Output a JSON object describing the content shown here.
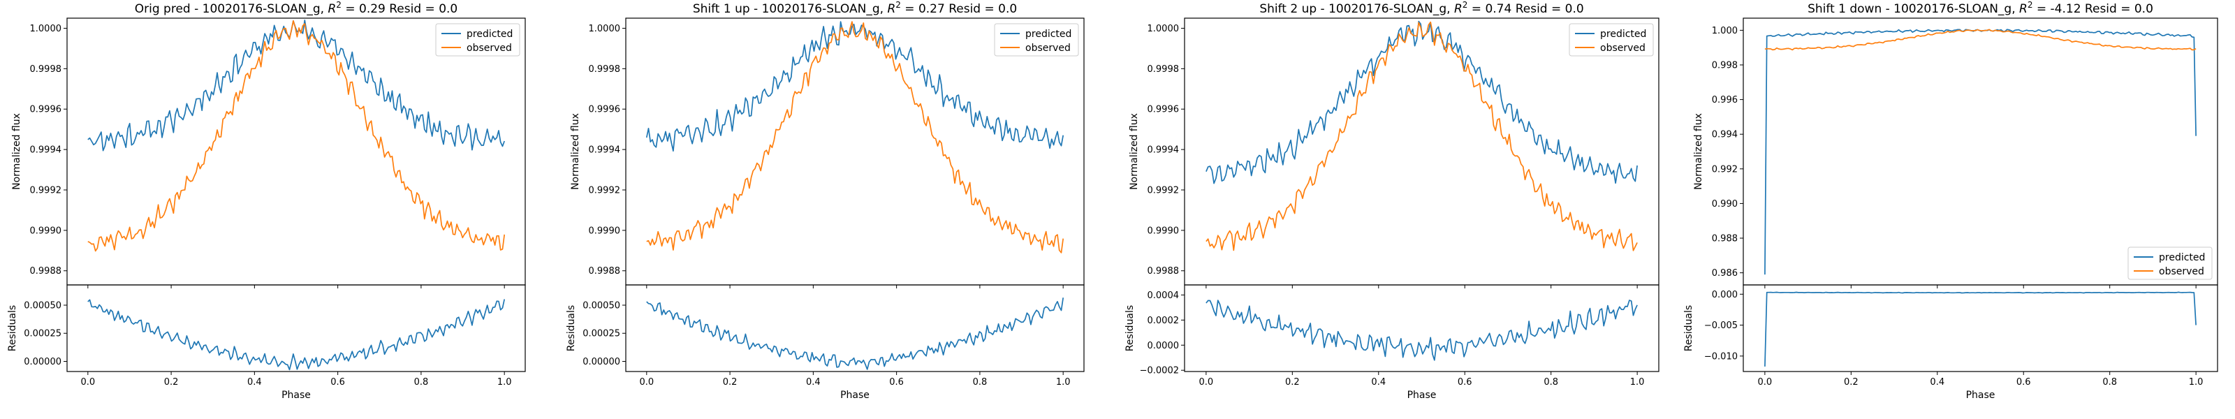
{
  "colors": {
    "predicted": "#1f77b4",
    "observed": "#ff7f0e"
  },
  "chart_data": [
    {
      "type": "line",
      "title": "Orig pred - 10020176-SLOAN_g, $R^2 = 0.29$ Resid = 0.0",
      "title_display": {
        "prefix": "Orig pred - 10020176-SLOAN_g, ",
        "r2": "0.29",
        "suffix": " Resid = 0.0"
      },
      "legend": [
        "predicted",
        "observed"
      ],
      "legend_position": "top-right",
      "xlabel": "Phase",
      "ylabel_top": "Normalized flux",
      "ylabel_bottom": "Residuals",
      "xlim": [
        -0.05,
        1.05
      ],
      "ylim_top": [
        0.99873,
        1.00005
      ],
      "ylim_bottom": [
        -9e-05,
        0.00068
      ],
      "xticks": [
        "0.0",
        "0.2",
        "0.4",
        "0.6",
        "0.8",
        "1.0"
      ],
      "yticks_top": [
        "0.9988",
        "0.9990",
        "0.9992",
        "0.9994",
        "0.9996",
        "0.9998",
        "1.0000"
      ],
      "yticks_bottom": [
        "0.00000",
        "0.00025",
        "0.00050"
      ],
      "series": [
        {
          "name": "predicted",
          "shape": "flat",
          "base": 0.99944,
          "amp": 0.00055,
          "noise": 5e-05
        },
        {
          "name": "observed",
          "shape": "peak",
          "base": 0.99893,
          "amp": 0.00106,
          "noise": 4e-05
        }
      ],
      "residuals": {
        "shape": "vee",
        "edge": 0.00052,
        "center": -1e-05,
        "noise": 5e-05
      }
    },
    {
      "type": "line",
      "title": "Shift 1 up - 10020176-SLOAN_g, $R^2 = 0.27$ Resid = 0.0",
      "title_display": {
        "prefix": "Shift 1 up - 10020176-SLOAN_g, ",
        "r2": "0.27",
        "suffix": " Resid = 0.0"
      },
      "legend": [
        "predicted",
        "observed"
      ],
      "legend_position": "top-right",
      "xlabel": "Phase",
      "ylabel_top": "Normalized flux",
      "ylabel_bottom": "Residuals",
      "xlim": [
        -0.05,
        1.05
      ],
      "ylim_top": [
        0.99873,
        1.00005
      ],
      "ylim_bottom": [
        -9e-05,
        0.00068
      ],
      "xticks": [
        "0.0",
        "0.2",
        "0.4",
        "0.6",
        "0.8",
        "1.0"
      ],
      "yticks_top": [
        "0.9988",
        "0.9990",
        "0.9992",
        "0.9994",
        "0.9996",
        "0.9998",
        "1.0000"
      ],
      "yticks_bottom": [
        "0.00000",
        "0.00025",
        "0.00050"
      ],
      "series": [
        {
          "name": "predicted",
          "shape": "flat",
          "base": 0.99945,
          "amp": 0.00054,
          "noise": 5e-05
        },
        {
          "name": "observed",
          "shape": "peak",
          "base": 0.99893,
          "amp": 0.00106,
          "noise": 4e-05
        }
      ],
      "residuals": {
        "shape": "vee",
        "edge": 0.00052,
        "center": -1e-05,
        "noise": 5e-05
      }
    },
    {
      "type": "line",
      "title": "Shift 2 up - 10020176-SLOAN_g, $R^2 = 0.74$ Resid = 0.0",
      "title_display": {
        "prefix": "Shift 2 up - 10020176-SLOAN_g, ",
        "r2": "0.74",
        "suffix": " Resid = 0.0"
      },
      "legend": [
        "predicted",
        "observed"
      ],
      "legend_position": "top-right",
      "xlabel": "Phase",
      "ylabel_top": "Normalized flux",
      "ylabel_bottom": "Residuals",
      "xlim": [
        -0.05,
        1.05
      ],
      "ylim_top": [
        0.99873,
        1.00005
      ],
      "ylim_bottom": [
        -0.00021,
        0.00048
      ],
      "xticks": [
        "0.0",
        "0.2",
        "0.4",
        "0.6",
        "0.8",
        "1.0"
      ],
      "yticks_top": [
        "0.9988",
        "0.9990",
        "0.9992",
        "0.9994",
        "0.9996",
        "0.9998",
        "1.0000"
      ],
      "yticks_bottom": [
        "−0.0002",
        "0.0000",
        "0.0002",
        "0.0004"
      ],
      "series": [
        {
          "name": "predicted",
          "shape": "peak",
          "base": 0.99928,
          "amp": 0.0007,
          "noise": 5e-05
        },
        {
          "name": "observed",
          "shape": "peak",
          "base": 0.99893,
          "amp": 0.00106,
          "noise": 4e-05
        }
      ],
      "residuals": {
        "shape": "vee",
        "edge": 0.00032,
        "center": -2e-05,
        "noise": 7e-05
      }
    },
    {
      "type": "line",
      "title": "Shift 1 down - 10020176-SLOAN_g, $R^2 = -4.12$ Resid = 0.0",
      "title_display": {
        "prefix": "Shift 1 down - 10020176-SLOAN_g, ",
        "r2": "-4.12",
        "suffix": " Resid = 0.0"
      },
      "legend": [
        "predicted",
        "observed"
      ],
      "legend_position": "lower-right",
      "xlabel": "Phase",
      "ylabel_top": "Normalized flux",
      "ylabel_bottom": "Residuals",
      "xlim": [
        -0.05,
        1.05
      ],
      "ylim_top": [
        0.9853,
        1.0007
      ],
      "ylim_bottom": [
        -0.0125,
        0.0015
      ],
      "xticks": [
        "0.0",
        "0.2",
        "0.4",
        "0.6",
        "0.8",
        "1.0"
      ],
      "yticks_top": [
        "0.986",
        "0.988",
        "0.990",
        "0.992",
        "0.994",
        "0.996",
        "0.998",
        "1.000"
      ],
      "yticks_bottom": [
        "−0.010",
        "−0.005",
        "0.000"
      ],
      "series": [
        {
          "name": "predicted",
          "shape": "edge-drop",
          "base": 0.9995,
          "amp": 0.0005,
          "noise": 6e-05,
          "first": 0.9859,
          "last": 0.9939
        },
        {
          "name": "observed",
          "shape": "peak",
          "base": 0.9989,
          "amp": 0.0011,
          "noise": 4e-05
        }
      ],
      "residuals": {
        "shape": "edge-drop",
        "edge": 0.0006,
        "center": 0.0,
        "noise": 3e-05,
        "first": -0.0117,
        "last": -0.005
      }
    }
  ]
}
